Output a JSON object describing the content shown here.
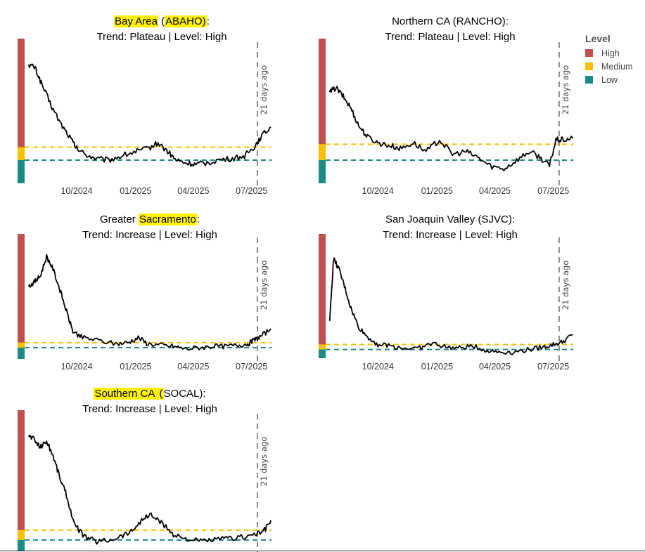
{
  "colors": {
    "high": "#c0504d",
    "medium": "#f6c100",
    "low": "#1a8a82",
    "line": "#000000",
    "marker": "#8a8a8a"
  },
  "legend": {
    "title": "Level",
    "items": [
      {
        "label": "High",
        "color": "#c0504d"
      },
      {
        "label": "Medium",
        "color": "#f6c100"
      },
      {
        "label": "Low",
        "color": "#1a8a82"
      }
    ]
  },
  "chart_data": [
    {
      "type": "line",
      "title_parts": [
        {
          "text": "Bay Area",
          "highlight": true
        },
        {
          "text": " (",
          "highlight": false
        },
        {
          "text": "ABAHO)",
          "highlight": true
        },
        {
          "text": ":",
          "highlight": false
        }
      ],
      "subtitle": "Trend: Plateau  | Level: High",
      "xlim": [
        "2024-07-15",
        "2025-08-01"
      ],
      "ylim": [
        0,
        100
      ],
      "x_ticks": [
        "10/2024",
        "01/2025",
        "04/2025",
        "07/2025"
      ],
      "levels": {
        "high_min": 25,
        "medium_min": 16
      },
      "marker": {
        "date": "2025-07-10",
        "label": "21 days ago"
      },
      "series": [
        {
          "name": "Bay Area (ABAHO)",
          "x": [
            "2024-07-18",
            "2024-07-28",
            "2024-08-08",
            "2024-08-22",
            "2024-09-05",
            "2024-09-20",
            "2024-10-01",
            "2024-10-15",
            "2024-11-01",
            "2024-11-20",
            "2024-12-10",
            "2025-01-01",
            "2025-01-20",
            "2025-02-05",
            "2025-02-20",
            "2025-03-05",
            "2025-03-20",
            "2025-04-05",
            "2025-04-20",
            "2025-05-10",
            "2025-06-01",
            "2025-06-20",
            "2025-07-05",
            "2025-07-15",
            "2025-07-31"
          ],
          "values": [
            82,
            80,
            68,
            54,
            42,
            32,
            24,
            20,
            17,
            16,
            19,
            22,
            24,
            28,
            22,
            16,
            14,
            13,
            14,
            16,
            17,
            19,
            25,
            32,
            39
          ]
        }
      ]
    },
    {
      "type": "line",
      "title_parts": [
        {
          "text": "Northern CA (RANCHO):",
          "highlight": false
        }
      ],
      "subtitle": "Trend: Plateau  | Level: High",
      "xlim": [
        "2024-07-15",
        "2025-08-01"
      ],
      "ylim": [
        0,
        100
      ],
      "x_ticks": [
        "10/2024",
        "01/2025",
        "04/2025",
        "07/2025"
      ],
      "levels": {
        "high_min": 27,
        "medium_min": 16
      },
      "marker": {
        "date": "2025-07-10",
        "label": "21 days ago"
      },
      "series": [
        {
          "name": "Northern CA (RANCHO)",
          "x": [
            "2024-07-18",
            "2024-07-28",
            "2024-08-08",
            "2024-08-20",
            "2024-09-01",
            "2024-09-15",
            "2024-10-01",
            "2024-10-20",
            "2024-11-05",
            "2024-11-25",
            "2024-12-15",
            "2025-01-05",
            "2025-01-25",
            "2025-02-15",
            "2025-03-05",
            "2025-03-25",
            "2025-04-15",
            "2025-05-05",
            "2025-05-25",
            "2025-06-10",
            "2025-06-25",
            "2025-07-05",
            "2025-07-15",
            "2025-07-31"
          ],
          "values": [
            63,
            66,
            60,
            52,
            40,
            32,
            28,
            26,
            24,
            28,
            22,
            30,
            20,
            22,
            18,
            12,
            10,
            16,
            22,
            18,
            12,
            30,
            30,
            31
          ]
        }
      ]
    },
    {
      "type": "line",
      "title_parts": [
        {
          "text": "Greater ",
          "highlight": false
        },
        {
          "text": "Sacramento",
          "highlight": true
        },
        {
          "text": ":",
          "highlight": false
        }
      ],
      "subtitle": "Trend: Increase  | Level: High",
      "xlim": [
        "2024-07-15",
        "2025-08-01"
      ],
      "ylim": [
        0,
        100
      ],
      "x_ticks": [
        "10/2024",
        "01/2025",
        "04/2025",
        "07/2025"
      ],
      "levels": {
        "high_min": 13,
        "medium_min": 9
      },
      "marker": {
        "date": "2025-07-10",
        "label": "21 days ago"
      },
      "series": [
        {
          "name": "Greater Sacramento",
          "x": [
            "2024-07-18",
            "2024-07-28",
            "2024-08-05",
            "2024-08-15",
            "2024-08-25",
            "2024-09-05",
            "2024-09-15",
            "2024-09-25",
            "2024-10-10",
            "2024-11-01",
            "2024-12-01",
            "2024-12-20",
            "2025-01-05",
            "2025-01-20",
            "2025-02-10",
            "2025-03-01",
            "2025-03-20",
            "2025-04-10",
            "2025-05-01",
            "2025-05-20",
            "2025-06-10",
            "2025-06-25",
            "2025-07-05",
            "2025-07-15",
            "2025-07-31"
          ],
          "values": [
            58,
            62,
            66,
            82,
            72,
            55,
            38,
            22,
            17,
            15,
            12,
            13,
            17,
            12,
            11,
            10,
            8,
            9,
            10,
            10,
            11,
            12,
            15,
            18,
            24
          ]
        }
      ]
    },
    {
      "type": "line",
      "title_parts": [
        {
          "text": "San Joaquin Valley (SJVC):",
          "highlight": false
        }
      ],
      "subtitle": "Trend: Increase  | Level: High",
      "xlim": [
        "2024-07-15",
        "2025-08-01"
      ],
      "ylim": [
        0,
        100
      ],
      "x_ticks": [
        "10/2024",
        "01/2025",
        "04/2025",
        "07/2025"
      ],
      "levels": {
        "high_min": 11,
        "medium_min": 7
      },
      "marker": {
        "date": "2025-07-10",
        "label": "21 days ago"
      },
      "series": [
        {
          "name": "San Joaquin Valley (SJVC)",
          "x": [
            "2024-07-18",
            "2024-07-24",
            "2024-08-01",
            "2024-08-10",
            "2024-08-20",
            "2024-09-01",
            "2024-09-15",
            "2024-10-01",
            "2024-10-20",
            "2024-11-10",
            "2024-12-05",
            "2024-12-25",
            "2025-01-15",
            "2025-02-05",
            "2025-02-25",
            "2025-03-20",
            "2025-04-10",
            "2025-05-01",
            "2025-05-25",
            "2025-06-15",
            "2025-07-01",
            "2025-07-15",
            "2025-07-31"
          ],
          "values": [
            30,
            80,
            72,
            58,
            40,
            25,
            17,
            11,
            10,
            8,
            8,
            12,
            9,
            8,
            10,
            6,
            5,
            5,
            7,
            9,
            11,
            13,
            19
          ]
        }
      ]
    },
    {
      "type": "line",
      "title_parts": [
        {
          "text": "Southern CA",
          "highlight": true
        },
        {
          "text": " (",
          "highlight": true
        },
        {
          "text": "SOCAL):",
          "highlight": false
        }
      ],
      "subtitle": "Trend: Increase  | Level: High",
      "xlim": [
        "2024-07-15",
        "2025-08-01"
      ],
      "ylim": [
        0,
        100
      ],
      "x_ticks": [],
      "levels": {
        "high_min": 15,
        "medium_min": 8
      },
      "marker": {
        "date": "2025-07-10",
        "label": "21 days ago"
      },
      "series": [
        {
          "name": "Southern CA (SOCAL)",
          "x": [
            "2024-07-18",
            "2024-07-25",
            "2024-08-05",
            "2024-08-15",
            "2024-08-25",
            "2024-09-05",
            "2024-09-15",
            "2024-09-28",
            "2024-10-15",
            "2024-11-01",
            "2024-11-20",
            "2024-12-10",
            "2024-12-25",
            "2025-01-10",
            "2025-01-25",
            "2025-02-10",
            "2025-03-01",
            "2025-03-20",
            "2025-04-10",
            "2025-05-01",
            "2025-05-25",
            "2025-06-15",
            "2025-07-05",
            "2025-07-20",
            "2025-07-31"
          ],
          "values": [
            82,
            80,
            74,
            78,
            68,
            52,
            40,
            18,
            10,
            7,
            8,
            11,
            14,
            22,
            26,
            20,
            12,
            9,
            7,
            8,
            9,
            10,
            12,
            14,
            22
          ]
        }
      ]
    }
  ]
}
